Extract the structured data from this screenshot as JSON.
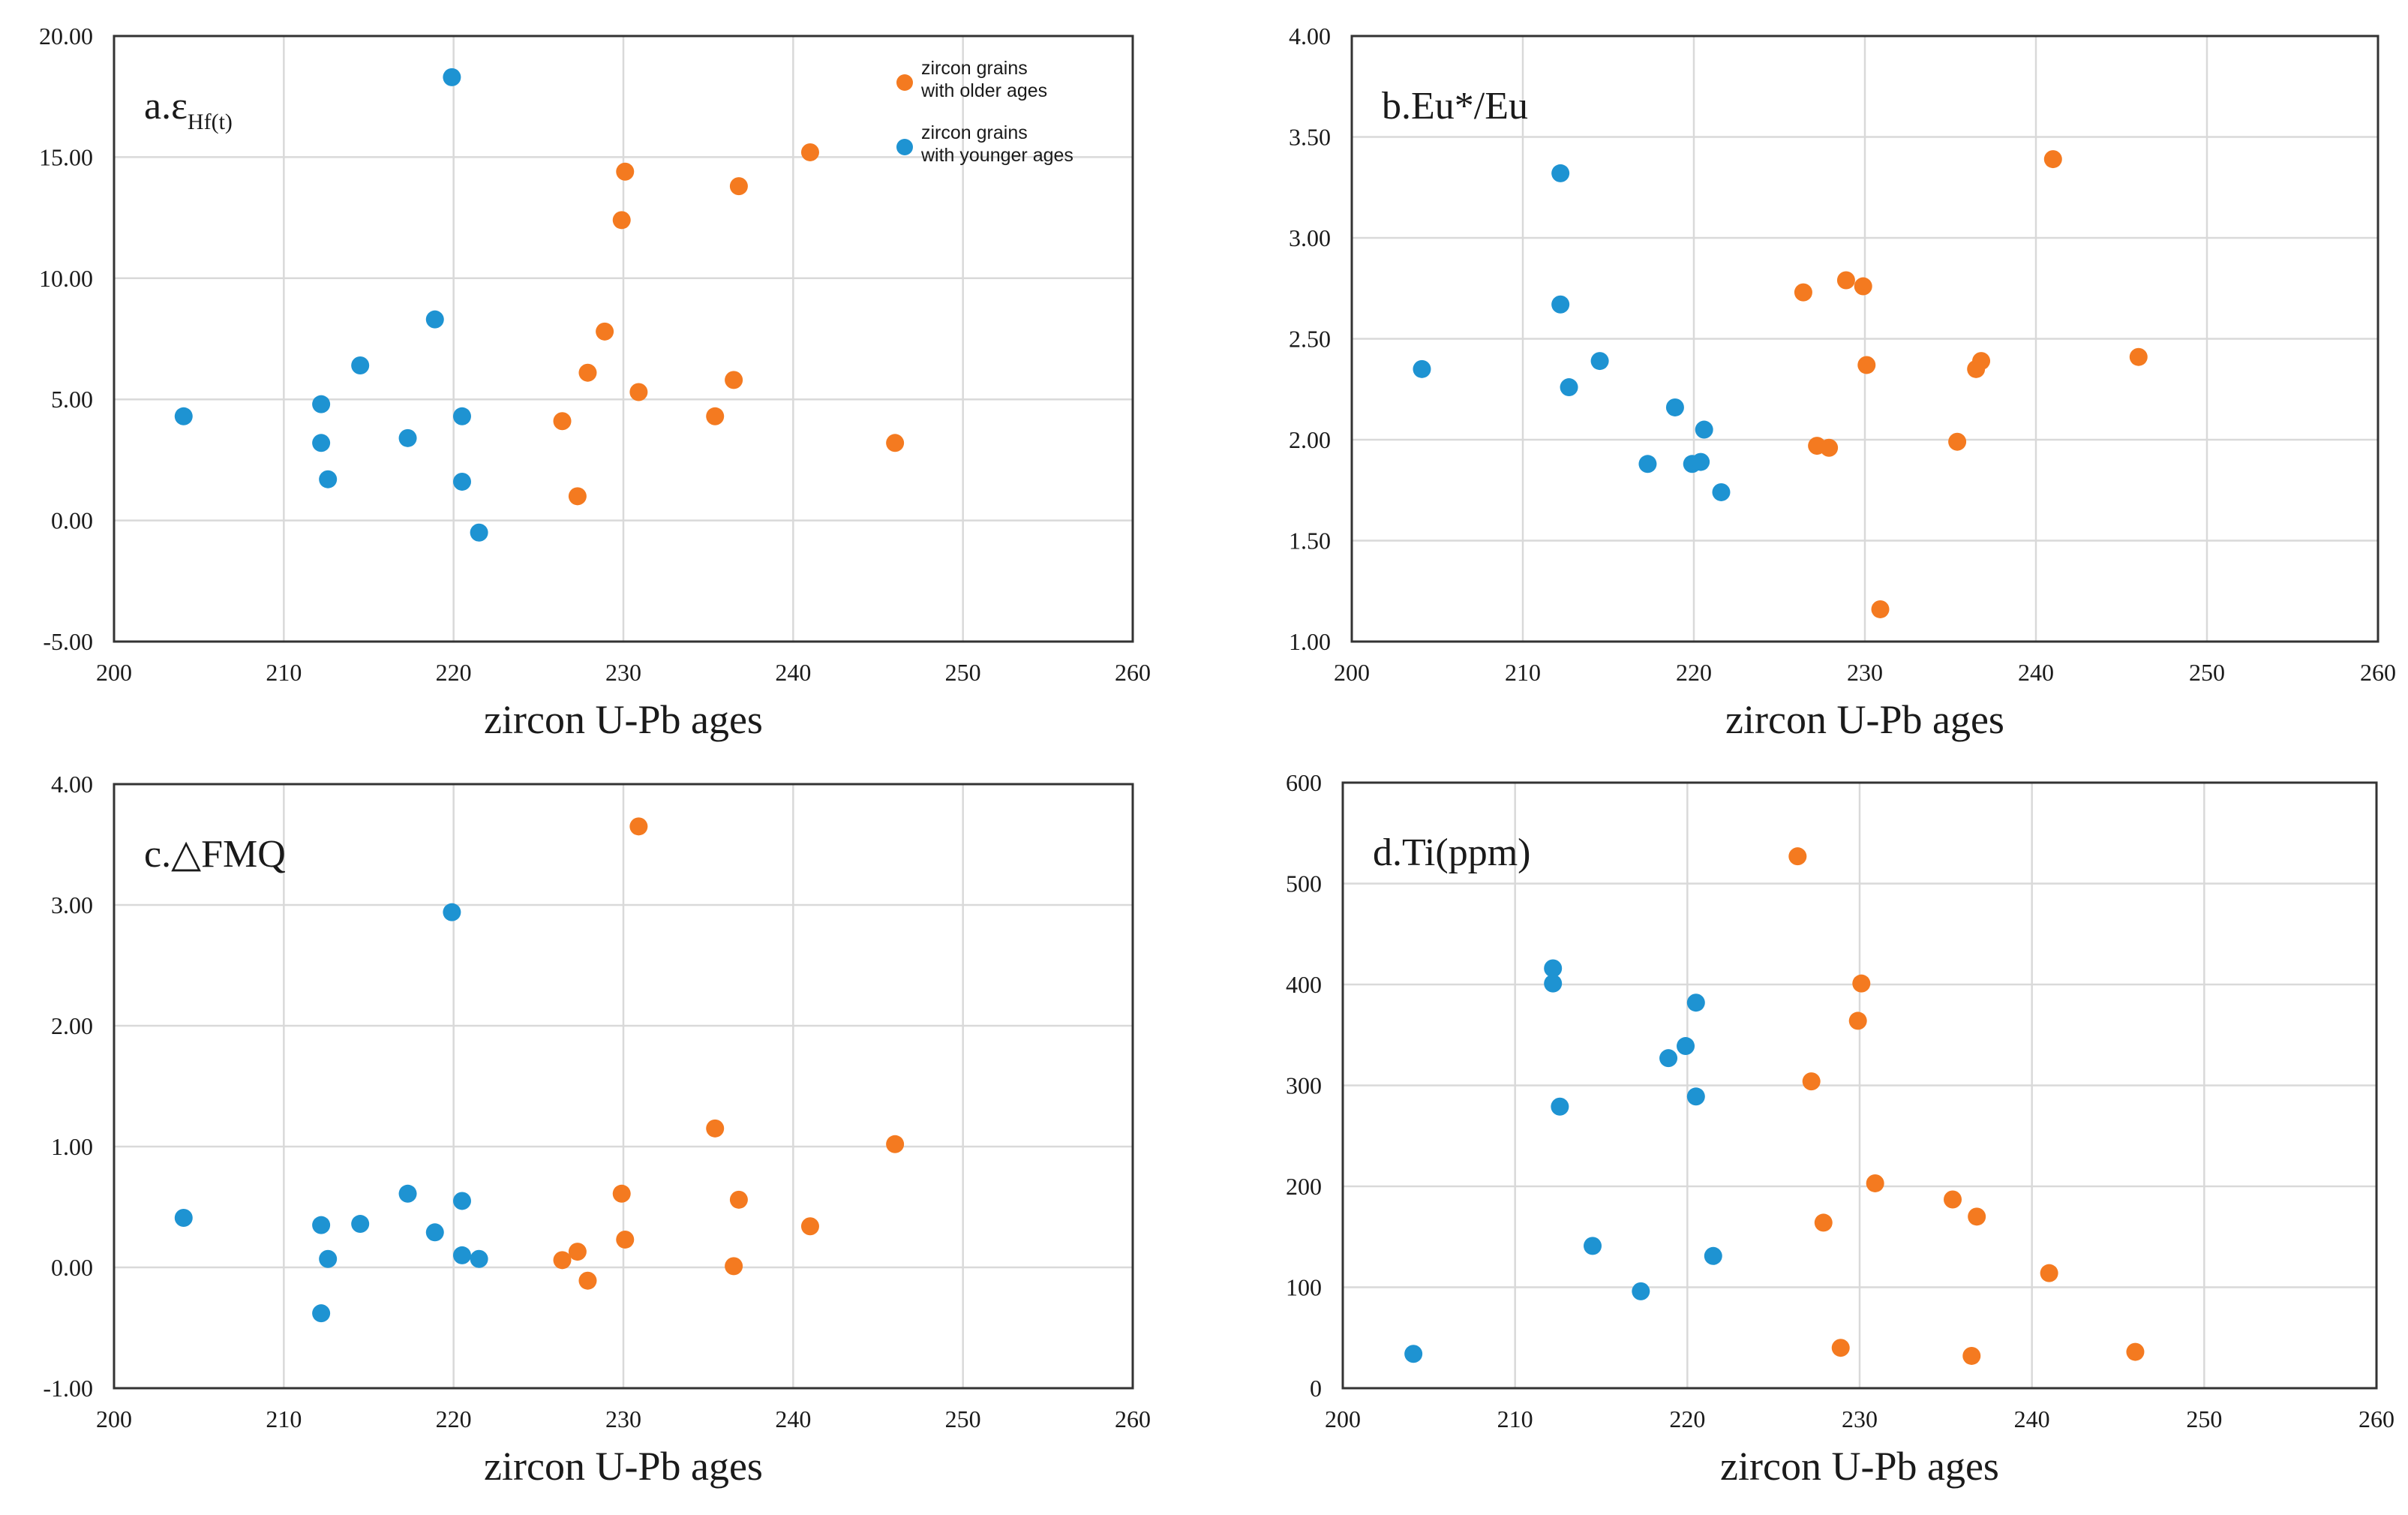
{
  "chart_data": [
    {
      "type": "scatter",
      "title": "a.ε",
      "title_sub": "Hf(t)",
      "xlabel": "zircon U-Pb ages",
      "ylabel": "",
      "xlim": [
        200,
        260
      ],
      "ylim": [
        -5,
        20
      ],
      "x_ticks": [
        200,
        210,
        220,
        230,
        240,
        250,
        260
      ],
      "y_ticks": [
        -5,
        0,
        5,
        10,
        15,
        20
      ],
      "y_tick_labels": [
        "-5.00",
        "0.00",
        "5.00",
        "10.00",
        "15.00",
        "20.00"
      ],
      "grid": true,
      "legend": [
        {
          "name": "older",
          "lines": [
            "zircon grains",
            "with older ages"
          ],
          "color": "#f47a20"
        },
        {
          "name": "younger",
          "lines": [
            "zircon grains",
            "with younger ages"
          ],
          "color": "#1e93d2"
        }
      ],
      "series": [
        {
          "name": "zircon grains with older ages",
          "color": "#f47a20",
          "points": [
            [
              226.4,
              4.1
            ],
            [
              227.3,
              1.0
            ],
            [
              227.9,
              6.1
            ],
            [
              228.9,
              7.8
            ],
            [
              229.9,
              12.4
            ],
            [
              230.1,
              14.4
            ],
            [
              230.9,
              5.3
            ],
            [
              235.4,
              4.3
            ],
            [
              236.5,
              5.8
            ],
            [
              236.8,
              13.8
            ],
            [
              241.0,
              15.2
            ],
            [
              246.0,
              3.2
            ]
          ]
        },
        {
          "name": "zircon grains with younger ages",
          "color": "#1e93d2",
          "points": [
            [
              204.1,
              4.3
            ],
            [
              212.2,
              4.8
            ],
            [
              212.2,
              3.2
            ],
            [
              212.6,
              1.7
            ],
            [
              214.5,
              6.4
            ],
            [
              217.3,
              3.4
            ],
            [
              218.9,
              8.3
            ],
            [
              219.9,
              18.3
            ],
            [
              220.5,
              4.3
            ],
            [
              220.5,
              1.6
            ],
            [
              221.5,
              -0.5
            ]
          ]
        }
      ]
    },
    {
      "type": "scatter",
      "title": "b.Eu*/Eu",
      "xlabel": "zircon U-Pb ages",
      "ylabel": "",
      "xlim": [
        200,
        260
      ],
      "ylim": [
        1,
        4
      ],
      "x_ticks": [
        200,
        210,
        220,
        230,
        240,
        250,
        260
      ],
      "y_ticks": [
        1,
        1.5,
        2,
        2.5,
        3,
        3.5,
        4
      ],
      "y_tick_labels": [
        "1.00",
        "1.50",
        "2.00",
        "2.50",
        "3.00",
        "3.50",
        "4.00"
      ],
      "grid": true,
      "series": [
        {
          "name": "zircon grains with older ages",
          "color": "#f47a20",
          "points": [
            [
              226.4,
              2.73
            ],
            [
              227.2,
              1.97
            ],
            [
              227.9,
              1.96
            ],
            [
              228.9,
              2.79
            ],
            [
              229.9,
              2.76
            ],
            [
              230.1,
              2.37
            ],
            [
              230.9,
              1.16
            ],
            [
              235.4,
              1.99
            ],
            [
              236.5,
              2.35
            ],
            [
              236.8,
              2.39
            ],
            [
              241.0,
              3.39
            ],
            [
              246.0,
              2.41
            ]
          ]
        },
        {
          "name": "zircon grains with younger ages",
          "color": "#1e93d2",
          "points": [
            [
              204.1,
              2.35
            ],
            [
              212.2,
              3.32
            ],
            [
              212.2,
              2.67
            ],
            [
              212.7,
              2.26
            ],
            [
              214.5,
              2.39
            ],
            [
              217.3,
              1.88
            ],
            [
              218.9,
              2.16
            ],
            [
              219.9,
              1.88
            ],
            [
              220.4,
              1.89
            ],
            [
              220.6,
              2.05
            ],
            [
              221.6,
              1.74
            ]
          ]
        }
      ]
    },
    {
      "type": "scatter",
      "title": "c.△FMQ",
      "xlabel": "zircon U-Pb ages",
      "ylabel": "",
      "xlim": [
        200,
        260
      ],
      "ylim": [
        -1,
        4
      ],
      "x_ticks": [
        200,
        210,
        220,
        230,
        240,
        250,
        260
      ],
      "y_ticks": [
        -1,
        0,
        1,
        2,
        3,
        4
      ],
      "y_tick_labels": [
        "-1.00",
        "0.00",
        "1.00",
        "2.00",
        "3.00",
        "4.00"
      ],
      "grid": true,
      "series": [
        {
          "name": "zircon grains with older ages",
          "color": "#f47a20",
          "points": [
            [
              226.4,
              0.06
            ],
            [
              227.3,
              0.13
            ],
            [
              227.9,
              -0.11
            ],
            [
              229.9,
              0.61
            ],
            [
              230.1,
              0.23
            ],
            [
              230.9,
              3.65
            ],
            [
              235.4,
              1.15
            ],
            [
              236.5,
              0.01
            ],
            [
              236.8,
              0.56
            ],
            [
              241.0,
              0.34
            ],
            [
              246.0,
              1.02
            ]
          ]
        },
        {
          "name": "zircon grains with younger ages",
          "color": "#1e93d2",
          "points": [
            [
              204.1,
              0.41
            ],
            [
              212.2,
              0.35
            ],
            [
              212.2,
              -0.38
            ],
            [
              212.6,
              0.07
            ],
            [
              214.5,
              0.36
            ],
            [
              217.3,
              0.61
            ],
            [
              218.9,
              0.29
            ],
            [
              219.9,
              2.94
            ],
            [
              220.5,
              0.55
            ],
            [
              220.5,
              0.1
            ],
            [
              221.5,
              0.07
            ]
          ]
        }
      ]
    },
    {
      "type": "scatter",
      "title": "d.Ti(ppm)",
      "xlabel": "zircon U-Pb ages",
      "ylabel": "",
      "xlim": [
        200,
        260
      ],
      "ylim": [
        0,
        600
      ],
      "x_ticks": [
        200,
        210,
        220,
        230,
        240,
        250,
        260
      ],
      "y_ticks": [
        0,
        100,
        200,
        300,
        400,
        500,
        600
      ],
      "y_tick_labels": [
        "0",
        "100",
        "200",
        "300",
        "400",
        "500",
        "600"
      ],
      "grid": true,
      "series": [
        {
          "name": "zircon grains with older ages",
          "color": "#f47a20",
          "points": [
            [
              226.4,
              527
            ],
            [
              227.2,
              304
            ],
            [
              227.9,
              164
            ],
            [
              228.9,
              40
            ],
            [
              229.9,
              364
            ],
            [
              230.1,
              401
            ],
            [
              230.9,
              203
            ],
            [
              235.4,
              187
            ],
            [
              236.5,
              32
            ],
            [
              236.8,
              170
            ],
            [
              241.0,
              114
            ],
            [
              246.0,
              36
            ]
          ]
        },
        {
          "name": "zircon grains with younger ages",
          "color": "#1e93d2",
          "points": [
            [
              204.1,
              34
            ],
            [
              212.2,
              416
            ],
            [
              212.2,
              401
            ],
            [
              212.6,
              279
            ],
            [
              214.5,
              141
            ],
            [
              217.3,
              96
            ],
            [
              218.9,
              327
            ],
            [
              219.9,
              339
            ],
            [
              220.5,
              382
            ],
            [
              220.5,
              289
            ],
            [
              221.5,
              131
            ]
          ]
        }
      ]
    }
  ]
}
